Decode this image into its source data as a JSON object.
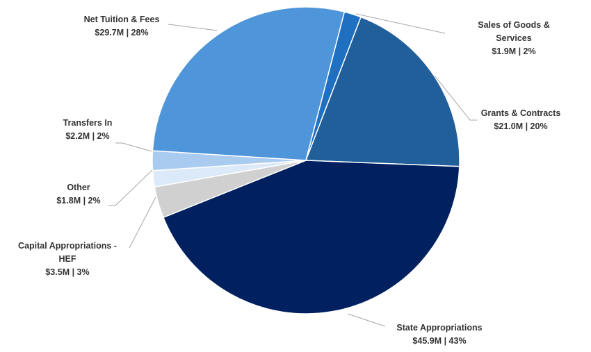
{
  "chart_data": {
    "type": "pie",
    "title": "",
    "slices": [
      {
        "label": "Sales of Goods & Services",
        "value": 1.9,
        "value_label": "$1.9M",
        "percent_label": "2%",
        "color": "#1f70c1"
      },
      {
        "label": "Grants & Contracts",
        "value": 21.0,
        "value_label": "$21.0M",
        "percent_label": "20%",
        "color": "#215f9a"
      },
      {
        "label": "State Appropriations",
        "value": 45.9,
        "value_label": "$45.9M",
        "percent_label": "43%",
        "color": "#002060"
      },
      {
        "label": "Capital Appropriations - HEF",
        "value": 3.5,
        "value_label": "$3.5M",
        "percent_label": "3%",
        "color": "#d0d0d0"
      },
      {
        "label": "Other",
        "value": 1.8,
        "value_label": "$1.8M",
        "percent_label": "2%",
        "color": "#dce9f8"
      },
      {
        "label": "Transfers In",
        "value": 2.2,
        "value_label": "$2.2M",
        "percent_label": "2%",
        "color": "#a9cbef"
      },
      {
        "label": "Net Tuition & Fees",
        "value": 29.7,
        "value_label": "$29.7M",
        "percent_label": "28%",
        "color": "#4f95d9"
      }
    ],
    "legend": "none"
  }
}
